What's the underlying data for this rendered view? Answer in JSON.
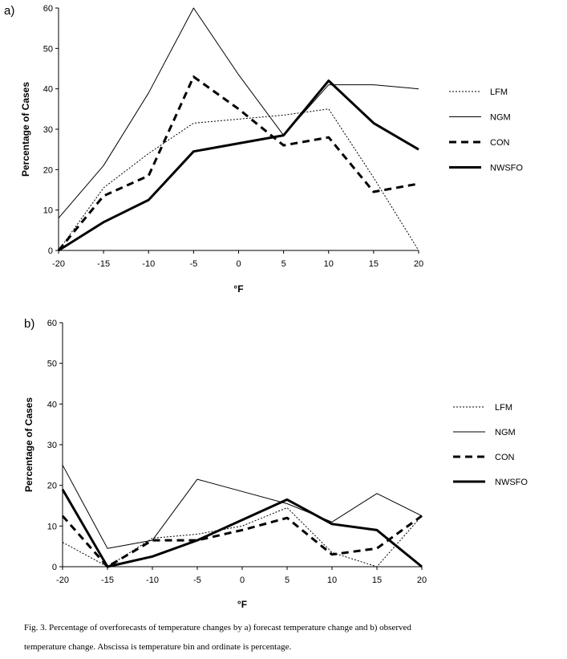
{
  "chart_data": [
    {
      "panel_label": "a)",
      "type": "line",
      "xlabel": "°F",
      "ylabel": "Percentage of Cases",
      "x": [
        -20,
        -15,
        -10,
        -5,
        0,
        5,
        10,
        15,
        20
      ],
      "xlim": [
        -20,
        20
      ],
      "ylim": [
        0,
        60
      ],
      "yticks": [
        0,
        10,
        20,
        30,
        40,
        50,
        60
      ],
      "grid": false,
      "legend_position": "right",
      "series": [
        {
          "name": "LFM",
          "style": "dotted",
          "values": [
            0,
            15.5,
            24,
            31.5,
            32.5,
            33.5,
            35,
            18,
            0
          ]
        },
        {
          "name": "NGM",
          "style": "thin",
          "values": [
            8,
            21,
            39,
            60,
            43.5,
            28.5,
            41,
            41,
            40
          ]
        },
        {
          "name": "CON",
          "style": "dashed",
          "values": [
            0,
            13.5,
            18.5,
            43,
            35,
            26,
            28,
            14.5,
            16.5
          ]
        },
        {
          "name": "NWSFO",
          "style": "thick",
          "values": [
            0,
            7,
            12.5,
            24.5,
            26.5,
            28.5,
            42,
            31.5,
            25
          ]
        }
      ]
    },
    {
      "panel_label": "b)",
      "type": "line",
      "xlabel": "°F",
      "ylabel": "Percentage of Cases",
      "x": [
        -20,
        -15,
        -10,
        -5,
        0,
        5,
        10,
        15,
        20
      ],
      "xlim": [
        -20,
        20
      ],
      "ylim": [
        0,
        60
      ],
      "yticks": [
        0,
        10,
        20,
        30,
        40,
        50,
        60
      ],
      "grid": false,
      "legend_position": "right",
      "series": [
        {
          "name": "LFM",
          "style": "dotted",
          "values": [
            6,
            0,
            7,
            8,
            10,
            14.5,
            3.5,
            0,
            12.5
          ]
        },
        {
          "name": "NGM",
          "style": "thin",
          "values": [
            25,
            4.5,
            6.5,
            21.5,
            18.5,
            15.5,
            11,
            18,
            12.5
          ]
        },
        {
          "name": "CON",
          "style": "dashed",
          "values": [
            12.5,
            0,
            6.5,
            6.5,
            9,
            12,
            3,
            4.5,
            12.5
          ]
        },
        {
          "name": "NWSFO",
          "style": "thick",
          "values": [
            19,
            0,
            2.5,
            6.5,
            11.5,
            16.5,
            10.5,
            9,
            0
          ]
        }
      ]
    }
  ],
  "caption": {
    "line1": "Fig. 3.  Percentage of overforecasts of temperature changes by a) forecast temperature change and b) observed",
    "line2": "temperature change.  Abscissa is temperature bin and ordinate is percentage."
  }
}
